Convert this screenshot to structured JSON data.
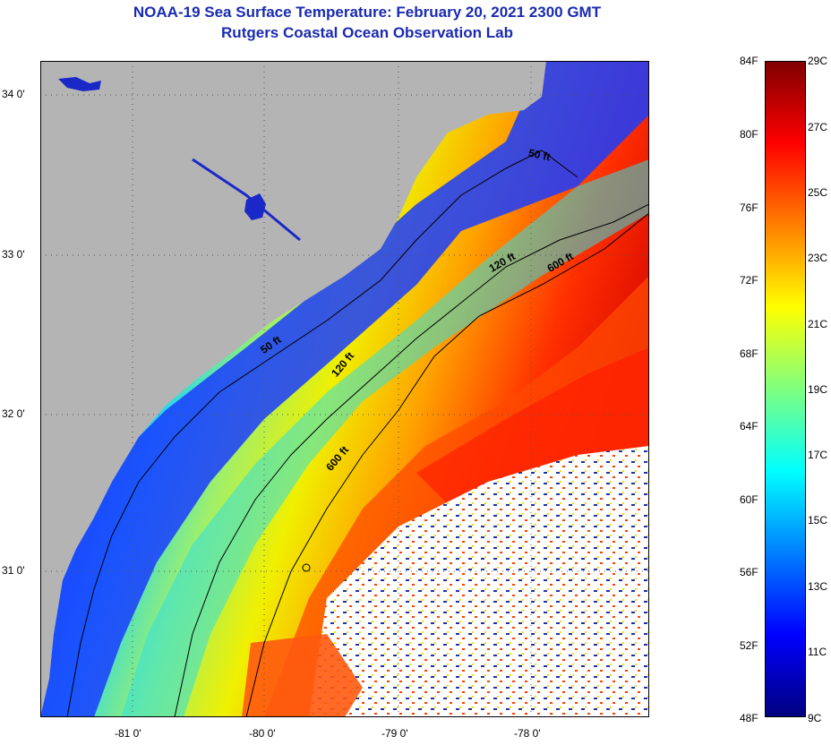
{
  "title": {
    "line1": "NOAA-19 Sea Surface Temperature:  February 20, 2021 2300 GMT",
    "line2": "Rutgers Coastal Ocean Observation Lab"
  },
  "map": {
    "lat_labels": [
      "34 0'",
      "33 0'",
      "32 0'",
      "31 0'"
    ],
    "lon_labels": [
      "-81 0'",
      "-80 0'",
      "-79 0'",
      "-78 0'"
    ],
    "contours": [
      {
        "label": "50 ft"
      },
      {
        "label": "50 ft"
      },
      {
        "label": "120 ft"
      },
      {
        "label": "120 ft"
      },
      {
        "label": "600 ft"
      },
      {
        "label": "600 ft"
      }
    ],
    "colors": {
      "land": "#b4b4b4",
      "cloud": "#ffffff",
      "contour": "#000000"
    }
  },
  "colorbar": {
    "fahrenheit": [
      "84F",
      "80F",
      "76F",
      "72F",
      "68F",
      "64F",
      "60F",
      "56F",
      "52F",
      "48F"
    ],
    "celsius": [
      "29C",
      "27C",
      "25C",
      "23C",
      "21C",
      "19C",
      "17C",
      "15C",
      "13C",
      "11C",
      "9C"
    ],
    "colors": [
      "#00007f",
      "#0000ff",
      "#007fff",
      "#00ffff",
      "#7fff7f",
      "#ffff00",
      "#ff7f00",
      "#ff0000",
      "#7f0000"
    ]
  }
}
